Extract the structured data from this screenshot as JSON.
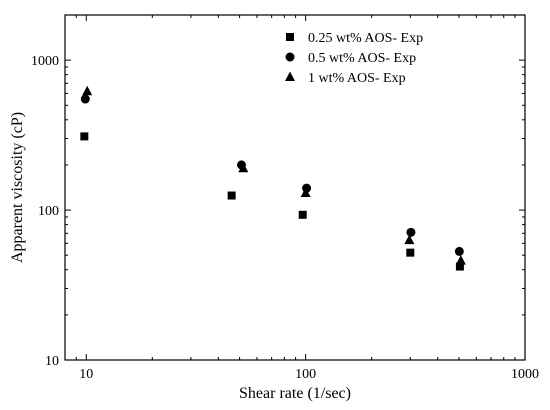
{
  "chart_data": {
    "type": "scatter",
    "title": "",
    "xlabel": "Shear rate (1/sec)",
    "ylabel": "Apparent viscosity (cP)",
    "xscale": "log",
    "yscale": "log",
    "xlim": [
      8,
      1000
    ],
    "ylim": [
      10,
      2000
    ],
    "xticks": [
      10,
      100,
      1000
    ],
    "xtick_labels": [
      "10",
      "100",
      "1000"
    ],
    "yticks": [
      10,
      100,
      1000
    ],
    "ytick_labels": [
      "10",
      "100",
      "1000"
    ],
    "grid": false,
    "legend_position": "top-right",
    "series": [
      {
        "name": "0.25 wt% AOS- Exp",
        "marker": "square",
        "color": "#000000",
        "x": [
          9.8,
          46,
          97,
          300,
          505
        ],
        "y": [
          310,
          125,
          93,
          52,
          42
        ]
      },
      {
        "name": "0.5 wt% AOS- Exp",
        "marker": "circle",
        "color": "#000000",
        "x": [
          9.9,
          51,
          101,
          302,
          502
        ],
        "y": [
          550,
          200,
          140,
          71,
          53
        ]
      },
      {
        "name": "1 wt% AOS- Exp",
        "marker": "triangle",
        "color": "#000000",
        "x": [
          10.1,
          52,
          100,
          297,
          510
        ],
        "y": [
          620,
          190,
          130,
          63,
          46
        ]
      }
    ]
  }
}
